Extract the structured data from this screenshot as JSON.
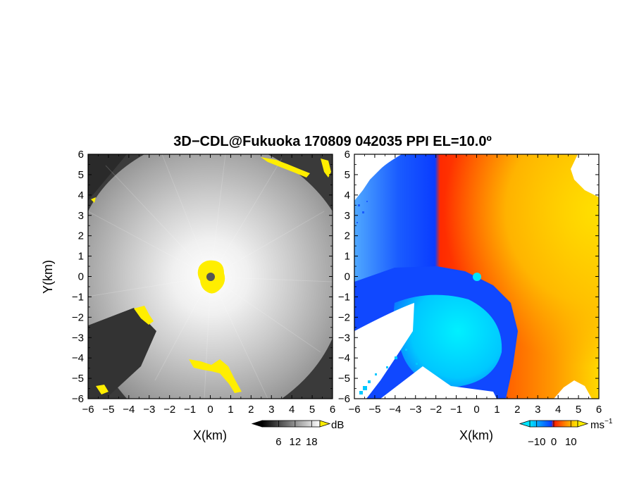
{
  "chart_data": {
    "title": "3D−CDL@Fukuoka 170809 042035 PPI EL=10.0º",
    "panels": [
      {
        "type": "heatmap",
        "field": "signal",
        "xlabel": "X(km)",
        "ylabel": "Y(km)",
        "xlim": [
          -6,
          6
        ],
        "ylim": [
          -6,
          6
        ],
        "x_ticks": [
          "−6",
          "−5",
          "−4",
          "−3",
          "−2",
          "−1",
          "0",
          "1",
          "2",
          "3",
          "4",
          "5",
          "6"
        ],
        "y_ticks": [
          "−6",
          "−5",
          "−4",
          "−3",
          "−2",
          "−1",
          "0",
          "1",
          "2",
          "3",
          "4",
          "5",
          "6"
        ],
        "radar_marker_xy": [
          0,
          0
        ],
        "colormap": "grayscale with yellow saturation",
        "colorbar": {
          "unit": "dB",
          "ticks": [
            "6",
            "12",
            "18"
          ],
          "range": [
            0,
            21
          ]
        }
      },
      {
        "type": "heatmap",
        "field": "doppler velocity",
        "xlabel": "X(km)",
        "ylabel": "",
        "xlim": [
          -6,
          6
        ],
        "ylim": [
          -6,
          6
        ],
        "x_ticks": [
          "−6",
          "−5",
          "−4",
          "−3",
          "−2",
          "−1",
          "0",
          "1",
          "2",
          "3",
          "4",
          "5",
          "6"
        ],
        "y_ticks": [
          "−6",
          "−5",
          "−4",
          "−3",
          "−2",
          "−1",
          "0",
          "1",
          "2",
          "3",
          "4",
          "5",
          "6"
        ],
        "radar_marker_xy": [
          0,
          0
        ],
        "colormap": "cyan-blue-red-orange-yellow",
        "colorbar": {
          "unit_base": "ms",
          "unit_exp": "−1",
          "ticks": [
            "−10",
            "0",
            "10"
          ],
          "range": [
            -14,
            14
          ]
        }
      }
    ]
  },
  "colors": {
    "gray_dark": "#3a3a3a",
    "gray_light": "#f2f2f2",
    "yellow": "#ffee00",
    "marker_gray": "#555555",
    "cyan": "#00e5ff",
    "blue": "#0a3cff",
    "red": "#ff1a00",
    "orange": "#ff7a00",
    "amber": "#ffb000",
    "yellow_light": "#ffe000"
  }
}
